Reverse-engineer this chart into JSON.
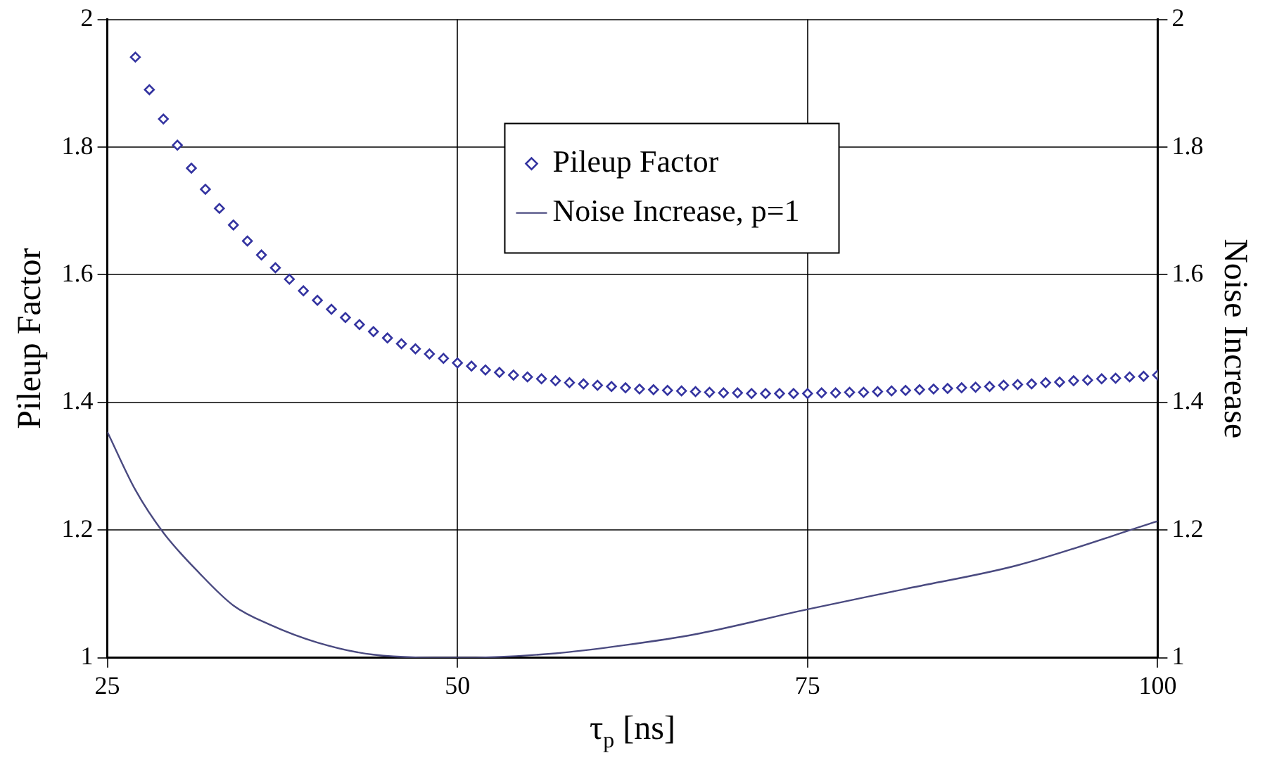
{
  "chart_data": {
    "type": "scatter",
    "xlabel": "τ$_{p}$ [ns]",
    "ylabel": "Pileup Factor",
    "y2label": "Noise Increase",
    "xlim": [
      25,
      100
    ],
    "xticks": [
      25,
      50,
      75,
      100
    ],
    "ylim": [
      1,
      2
    ],
    "yticks": [
      1,
      1.2,
      1.4,
      1.6,
      1.8,
      2
    ],
    "y2lim": [
      1,
      2
    ],
    "y2ticks": [
      1,
      1.2,
      1.4,
      1.6,
      1.8,
      2
    ],
    "grid": true,
    "legend": "top",
    "marker": "diamond",
    "series": [
      {
        "name": "Pileup Factor",
        "type": "scatter",
        "color": "#3333a0",
        "x": [
          27,
          28,
          29,
          30,
          31,
          32,
          33,
          34,
          35,
          36,
          37,
          38,
          39,
          40,
          41,
          42,
          43,
          44,
          45,
          46,
          47,
          48,
          49,
          50,
          51,
          52,
          53,
          54,
          55,
          56,
          57,
          58,
          59,
          60,
          61,
          62,
          63,
          64,
          65,
          66,
          67,
          68,
          69,
          70,
          71,
          72,
          73,
          74,
          75,
          76,
          77,
          78,
          79,
          80,
          81,
          82,
          83,
          84,
          85,
          86,
          87,
          88,
          89,
          90,
          91,
          92,
          93,
          94,
          95,
          96,
          97,
          98,
          99,
          100
        ],
        "values": [
          1.941,
          1.89,
          1.844,
          1.803,
          1.767,
          1.734,
          1.704,
          1.678,
          1.653,
          1.631,
          1.611,
          1.593,
          1.575,
          1.56,
          1.546,
          1.533,
          1.522,
          1.511,
          1.501,
          1.492,
          1.484,
          1.476,
          1.469,
          1.462,
          1.457,
          1.451,
          1.447,
          1.443,
          1.44,
          1.437,
          1.434,
          1.431,
          1.429,
          1.427,
          1.425,
          1.423,
          1.421,
          1.42,
          1.419,
          1.418,
          1.417,
          1.416,
          1.415,
          1.415,
          1.414,
          1.414,
          1.414,
          1.414,
          1.414,
          1.415,
          1.415,
          1.416,
          1.416,
          1.417,
          1.418,
          1.419,
          1.42,
          1.421,
          1.422,
          1.423,
          1.424,
          1.425,
          1.427,
          1.428,
          1.429,
          1.431,
          1.432,
          1.434,
          1.435,
          1.437,
          1.438,
          1.44,
          1.441,
          1.443
        ]
      },
      {
        "name": "Noise Increase, p=1",
        "type": "line",
        "axis": "y2",
        "color": "#4a4a80",
        "marker": "none",
        "line_style": "solid",
        "x": [
          25,
          27,
          29,
          31.6,
          34,
          36.6,
          40,
          44,
          50,
          57,
          62,
          67,
          75,
          82,
          90,
          100
        ],
        "values": [
          1.354,
          1.263,
          1.196,
          1.132,
          1.082,
          1.052,
          1.024,
          1.005,
          1.0,
          1.007,
          1.02,
          1.037,
          1.076,
          1.108,
          1.145,
          1.214
        ]
      }
    ]
  }
}
